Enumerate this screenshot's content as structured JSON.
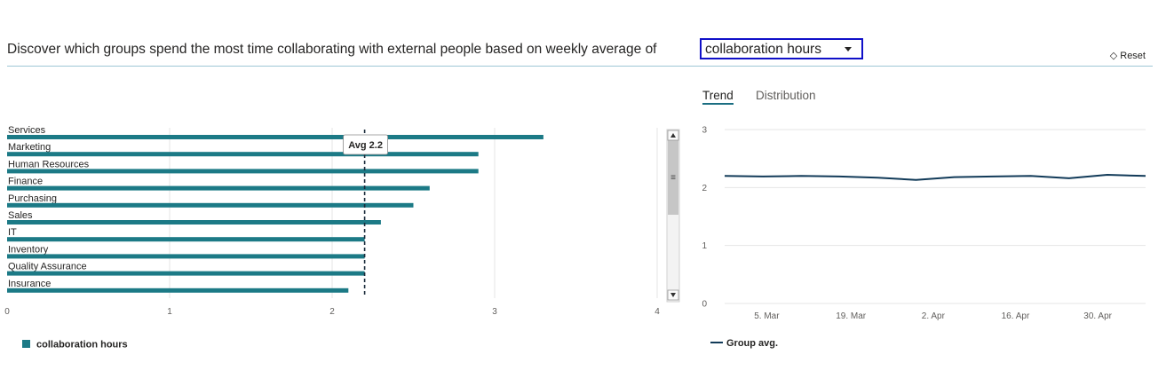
{
  "header": {
    "title": "Discover which groups spend the most time collaborating with external people based on weekly average of",
    "metric_select_value": "collaboration hours",
    "reset_label": "Reset",
    "reset_icon": "eraser-icon"
  },
  "tabs": [
    {
      "label": "Trend",
      "active": true
    },
    {
      "label": "Distribution",
      "active": false
    }
  ],
  "colors": {
    "bar": "#1c7a86",
    "line": "#123b59",
    "avg_line": "#1a2a3a",
    "grid": "#e6e6e6"
  },
  "chart_data": [
    {
      "type": "bar",
      "orientation": "horizontal",
      "categories": [
        "Services",
        "Marketing",
        "Human Resources",
        "Finance",
        "Purchasing",
        "Sales",
        "IT",
        "Inventory",
        "Quality Assurance",
        "Insurance"
      ],
      "series": [
        {
          "name": "collaboration hours",
          "values": [
            3.3,
            2.9,
            2.9,
            2.6,
            2.5,
            2.3,
            2.2,
            2.2,
            2.2,
            2.1
          ]
        }
      ],
      "x_ticks": [
        "0",
        "1",
        "2",
        "3",
        "4"
      ],
      "xlim": [
        0,
        4
      ],
      "average": {
        "value": 2.2,
        "label": "Avg 2.2"
      },
      "grid": true,
      "legend_position": "bottom-left"
    },
    {
      "type": "line",
      "x_ticks": [
        "5. Mar",
        "19. Mar",
        "2. Apr",
        "16. Apr",
        "30. Apr"
      ],
      "y_ticks": [
        "0",
        "1",
        "2",
        "3"
      ],
      "ylim": [
        0,
        3
      ],
      "series": [
        {
          "name": "Group avg.",
          "values": [
            2.2,
            2.19,
            2.2,
            2.19,
            2.17,
            2.13,
            2.18,
            2.19,
            2.2,
            2.16,
            2.22,
            2.2
          ]
        }
      ],
      "grid": true,
      "legend_position": "bottom-left"
    }
  ]
}
